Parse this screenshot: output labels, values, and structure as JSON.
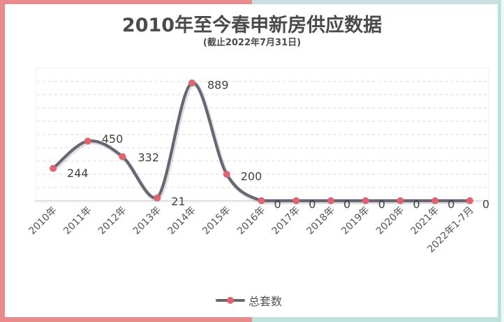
{
  "title": "2010年至今春申新房供应数据",
  "subtitle": "(截止2022年7月31日)",
  "legend": {
    "label": "总套数"
  },
  "colors": {
    "line": "#6a6573",
    "marker": "#e0646f",
    "border_left": "#e98a8c",
    "border_right": "#b9e2d8",
    "gridline": "#e6e6e6",
    "text": "#4b4b4b"
  },
  "chart_data": {
    "type": "line",
    "title": "2010年至今春申新房供应数据",
    "subtitle": "(截止2022年7月31日)",
    "xlabel": "",
    "ylabel": "",
    "categories": [
      "2010年",
      "2011年",
      "2012年",
      "2013年",
      "2014年",
      "2015年",
      "2016年",
      "2017年",
      "2018年",
      "2019年",
      "2020年",
      "2021年",
      "2022年1-7月"
    ],
    "series": [
      {
        "name": "总套数",
        "values": [
          244,
          450,
          332,
          21,
          889,
          200,
          0,
          0,
          0,
          0,
          0,
          0,
          0
        ]
      }
    ],
    "data_labels": true,
    "smooth": true,
    "grid": true,
    "y_axis_visible": false,
    "ylim": [
      0,
      1000
    ],
    "legend_position": "bottom"
  }
}
